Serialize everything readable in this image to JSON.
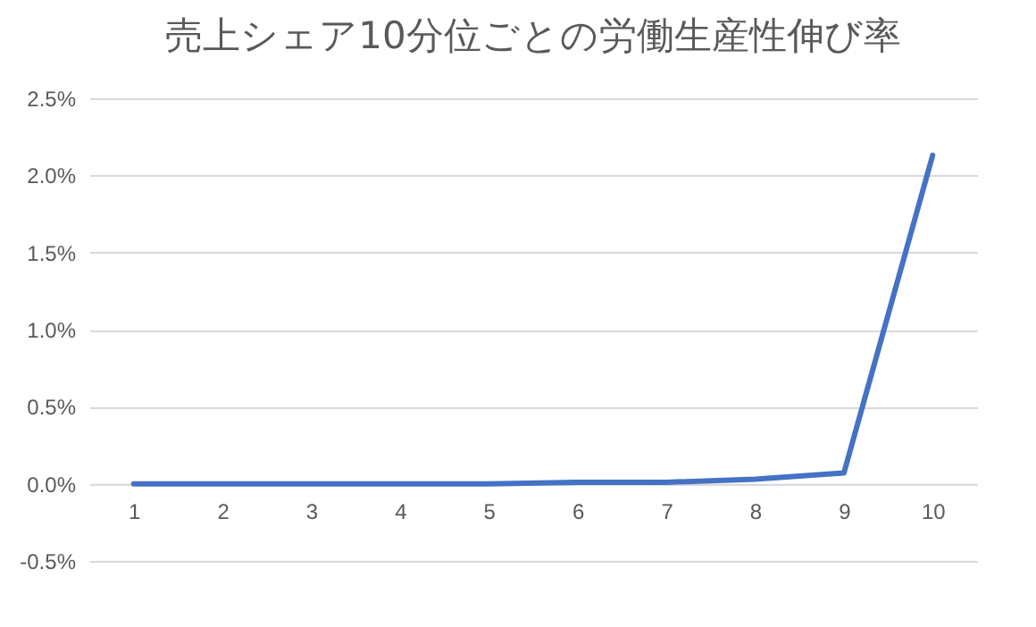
{
  "chart_data": {
    "type": "line",
    "title": "売上シェア10分位ごとの労働生産性伸び率",
    "categories": [
      "1",
      "2",
      "3",
      "4",
      "5",
      "6",
      "7",
      "8",
      "9",
      "10"
    ],
    "series": [
      {
        "color": "#4472c4",
        "values": [
          0.0,
          0.0,
          0.0,
          0.0,
          0.0,
          0.01,
          0.01,
          0.03,
          0.07,
          2.13
        ]
      }
    ],
    "ylim": [
      -0.5,
      2.5
    ],
    "yticks": [
      {
        "value": -0.5,
        "label": "-0.5%"
      },
      {
        "value": 0,
        "label": "0.0%"
      },
      {
        "value": 0.5,
        "label": "0.5%"
      },
      {
        "value": 1,
        "label": "1.0%"
      },
      {
        "value": 1.5,
        "label": "1.5%"
      },
      {
        "value": 2,
        "label": "2.0%"
      },
      {
        "value": 2.5,
        "label": "2.5%"
      }
    ],
    "grid": "y",
    "marker": "none",
    "line_style": "solid"
  }
}
